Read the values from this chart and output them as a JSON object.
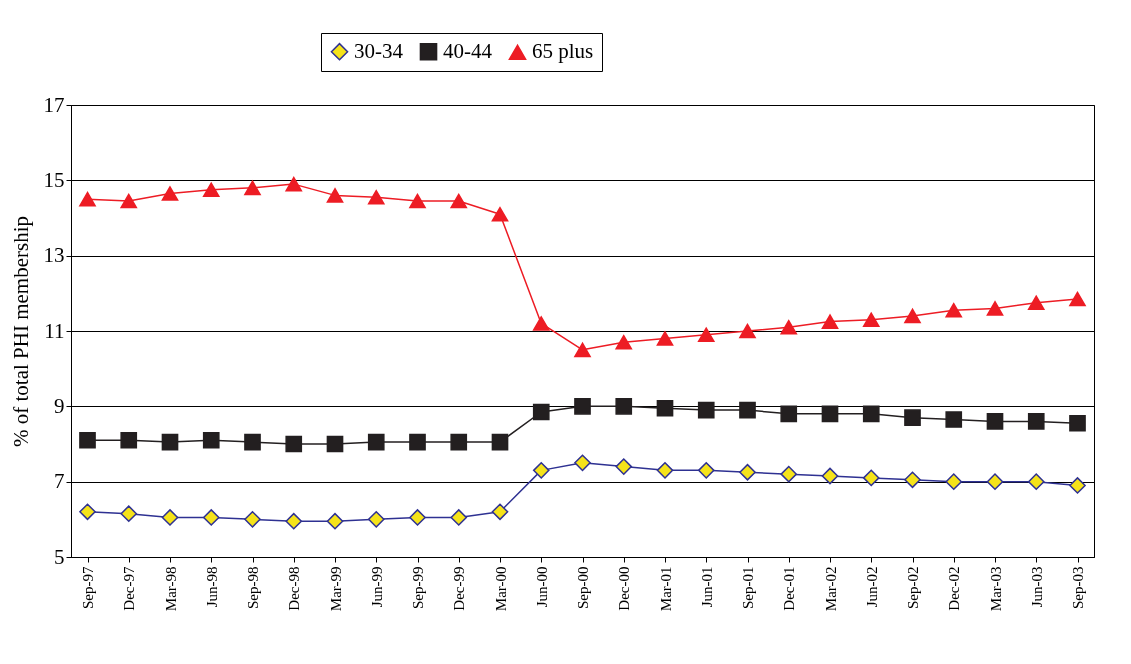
{
  "chart_data": {
    "type": "line",
    "ylabel": "% of total PHI membership",
    "categories": [
      "Sep-97",
      "Dec-97",
      "Mar-98",
      "Jun-98",
      "Sep-98",
      "Dec-98",
      "Mar-99",
      "Jun-99",
      "Sep-99",
      "Dec-99",
      "Mar-00",
      "Jun-00",
      "Sep-00",
      "Dec-00",
      "Mar-01",
      "Jun-01",
      "Sep-01",
      "Dec-01",
      "Mar-02",
      "Jun-02",
      "Sep-02",
      "Dec-02",
      "Mar-03",
      "Jun-03",
      "Sep-03"
    ],
    "series": [
      {
        "name": "30-34",
        "color": "#2e3192",
        "marker": "diamond",
        "values": [
          6.2,
          6.15,
          6.05,
          6.05,
          6.0,
          5.95,
          5.95,
          6.0,
          6.05,
          6.05,
          6.2,
          7.3,
          7.5,
          7.4,
          7.3,
          7.3,
          7.25,
          7.2,
          7.15,
          7.1,
          7.05,
          7.0,
          7.0,
          7.0,
          6.9
        ]
      },
      {
        "name": "40-44",
        "color": "#231f20",
        "marker": "square",
        "values": [
          8.1,
          8.1,
          8.05,
          8.1,
          8.05,
          8.0,
          8.0,
          8.05,
          8.05,
          8.05,
          8.05,
          8.85,
          9.0,
          9.0,
          8.95,
          8.9,
          8.9,
          8.8,
          8.8,
          8.8,
          8.7,
          8.65,
          8.6,
          8.6,
          8.55
        ]
      },
      {
        "name": "65 plus",
        "color": "#ed1c24",
        "marker": "triangle",
        "values": [
          14.5,
          14.45,
          14.65,
          14.75,
          14.8,
          14.9,
          14.6,
          14.55,
          14.45,
          14.45,
          14.1,
          11.2,
          10.5,
          10.7,
          10.8,
          10.9,
          11.0,
          11.1,
          11.25,
          11.3,
          11.4,
          11.55,
          11.6,
          11.75,
          11.85
        ]
      }
    ],
    "ylim": [
      5,
      17
    ],
    "yticks": [
      5,
      7,
      9,
      11,
      13,
      15,
      17
    ],
    "grid": "y",
    "legend": "top"
  }
}
